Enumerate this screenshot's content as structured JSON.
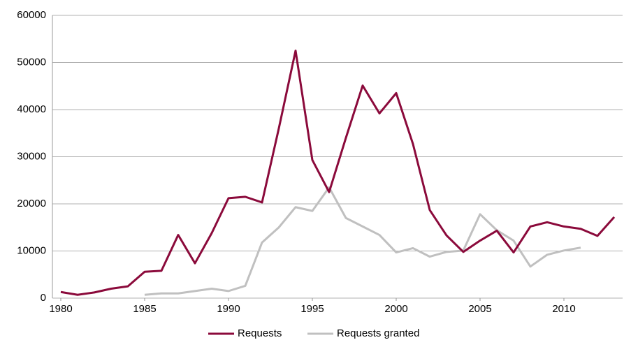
{
  "chart_data": {
    "type": "line",
    "x": [
      1980,
      1981,
      1982,
      1983,
      1984,
      1985,
      1986,
      1987,
      1988,
      1989,
      1990,
      1991,
      1992,
      1993,
      1994,
      1995,
      1996,
      1997,
      1998,
      1999,
      2000,
      2001,
      2002,
      2003,
      2004,
      2005,
      2006,
      2007,
      2008,
      2009,
      2010,
      2011,
      2012,
      2013
    ],
    "series": [
      {
        "name": "Requests",
        "color": "#8b0a3b",
        "values": [
          1300,
          700,
          1200,
          2000,
          2500,
          5600,
          5800,
          13400,
          7400,
          13800,
          21200,
          21500,
          20300,
          36000,
          52500,
          29300,
          22500,
          34000,
          45100,
          39200,
          43500,
          32700,
          18700,
          13300,
          9800,
          12200,
          14300,
          9700,
          15200,
          16100,
          15200,
          14700,
          13200,
          17200
        ]
      },
      {
        "name": "Requests granted",
        "color": "#c0c0c0",
        "values": [
          null,
          null,
          null,
          null,
          null,
          700,
          1000,
          1000,
          1500,
          2000,
          1500,
          2600,
          11800,
          15000,
          19300,
          18500,
          23500,
          17000,
          15200,
          13400,
          9700,
          10600,
          8800,
          9800,
          10100,
          17800,
          14400,
          12200,
          6700,
          9200,
          10100,
          10700,
          null,
          null
        ]
      }
    ],
    "xlim": [
      1979.5,
      2013.5
    ],
    "xticks": [
      1980,
      1985,
      1990,
      1995,
      2000,
      2005,
      2010
    ],
    "ylim": [
      0,
      60000
    ],
    "yticks": [
      0,
      10000,
      20000,
      30000,
      40000,
      50000,
      60000
    ],
    "grid": true,
    "legend": "bottom"
  }
}
